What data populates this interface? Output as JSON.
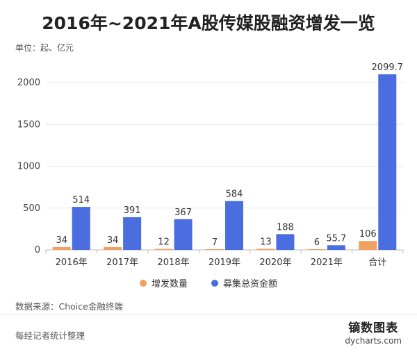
{
  "title": "2016年~2021年A股传媒股融资增发一览",
  "unit": "单位：起、亿元",
  "source": "数据来源：Choice金融终端",
  "note": "每经记者统计整理",
  "brand": {
    "cn": "镝数图表",
    "en": "dycharts.com"
  },
  "colors": {
    "count": "#f0a061",
    "amount": "#4a6de0",
    "grid": "#e8e8e8",
    "axis": "#bbbbbb"
  },
  "chart_data": {
    "type": "bar",
    "categories": [
      "2016年",
      "2017年",
      "2018年",
      "2019年",
      "2020年",
      "2021年",
      "合计"
    ],
    "series": [
      {
        "name": "增发数量",
        "values": [
          34,
          34,
          12,
          7,
          13,
          6,
          106
        ]
      },
      {
        "name": "募集总资金额",
        "values": [
          514,
          391,
          367,
          584,
          188,
          55.7,
          2099.7
        ]
      }
    ],
    "yticks": [
      0,
      500,
      1000,
      1500,
      2000
    ],
    "ylim": [
      0,
      2200
    ],
    "grid": true,
    "legend": "bottom"
  }
}
